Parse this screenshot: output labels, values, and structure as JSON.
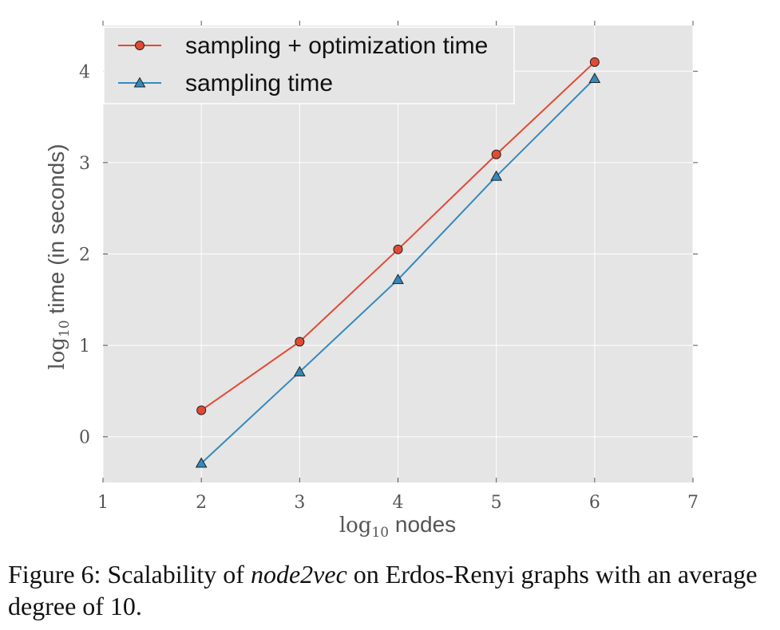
{
  "chart_data": {
    "type": "line",
    "xlabel": {
      "prefix": "log",
      "subscript": "10",
      "text": " nodes"
    },
    "ylabel": {
      "prefix": "log",
      "subscript": "10",
      "text": " time (in seconds)"
    },
    "xlim": [
      1,
      7
    ],
    "ylim": [
      -0.5,
      4.5
    ],
    "x_ticks": [
      1,
      2,
      3,
      4,
      5,
      6,
      7
    ],
    "y_ticks": [
      0,
      1,
      2,
      3,
      4
    ],
    "grid": true,
    "background": "#e5e5e5",
    "legend_position": "top-left",
    "x": [
      2,
      3,
      4,
      5,
      6
    ],
    "series": [
      {
        "name": "sampling + optimization time",
        "values": [
          0.29,
          1.04,
          2.05,
          3.09,
          4.1
        ],
        "color": "#e24a33",
        "marker": "circle"
      },
      {
        "name": "sampling time",
        "values": [
          -0.29,
          0.71,
          1.72,
          2.85,
          3.92
        ],
        "color": "#348abd",
        "marker": "triangle"
      }
    ]
  },
  "caption": {
    "prefix": "Figure 6: Scalability of ",
    "emphasis": "node2vec",
    "suffix": " on Erdos-Renyi graphs with an average degree of 10."
  }
}
